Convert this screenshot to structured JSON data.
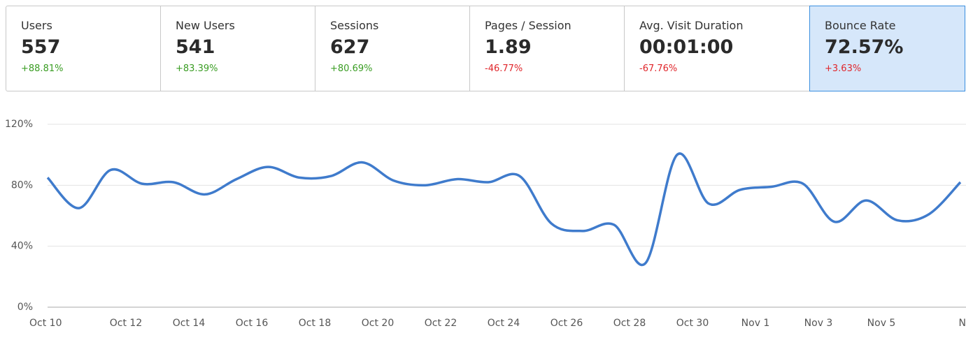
{
  "metrics": [
    {
      "label": "Users",
      "value": "557",
      "change": "+88.81%",
      "change_color": "#3a9d23"
    },
    {
      "label": "New Users",
      "value": "541",
      "change": "+83.39%",
      "change_color": "#3a9d23"
    },
    {
      "label": "Sessions",
      "value": "627",
      "change": "+80.69%",
      "change_color": "#3a9d23"
    },
    {
      "label": "Pages / Session",
      "value": "1.89",
      "change": "-46.77%",
      "change_color": "#e0262b"
    },
    {
      "label": "Avg. Visit Duration",
      "value": "00:01:00",
      "change": "-67.76%",
      "change_color": "#e0262b"
    },
    {
      "label": "Bounce Rate",
      "value": "72.57%",
      "change": "+3.63%",
      "change_color": "#e0262b"
    }
  ],
  "selected_metric": 5,
  "chart_data": {
    "type": "line",
    "categories": [
      "Oct 10",
      null,
      "Oct 12",
      null,
      "Oct 14",
      null,
      "Oct 16",
      null,
      "Oct 18",
      null,
      "Oct 20",
      null,
      "Oct 22",
      null,
      "Oct 24",
      null,
      "Oct 26",
      null,
      "Oct 28",
      null,
      "Oct 30",
      null,
      "Nov 1",
      null,
      "Nov 3",
      null,
      "Nov 5",
      null,
      "N",
      null
    ],
    "values": [
      85,
      65,
      90,
      81,
      82,
      74,
      84,
      92,
      85,
      86,
      95,
      83,
      80,
      84,
      82,
      86,
      55,
      50,
      54,
      29,
      100,
      68,
      77,
      79,
      81,
      56,
      70,
      57,
      61,
      82
    ],
    "color": "#3f7bcc",
    "ylim": [
      0,
      120
    ],
    "yticks": [
      {
        "value": 0,
        "label": "0%"
      },
      {
        "value": 40,
        "label": "40%"
      },
      {
        "value": 80,
        "label": "80%"
      },
      {
        "value": 120,
        "label": "120%"
      }
    ],
    "grid": true
  }
}
